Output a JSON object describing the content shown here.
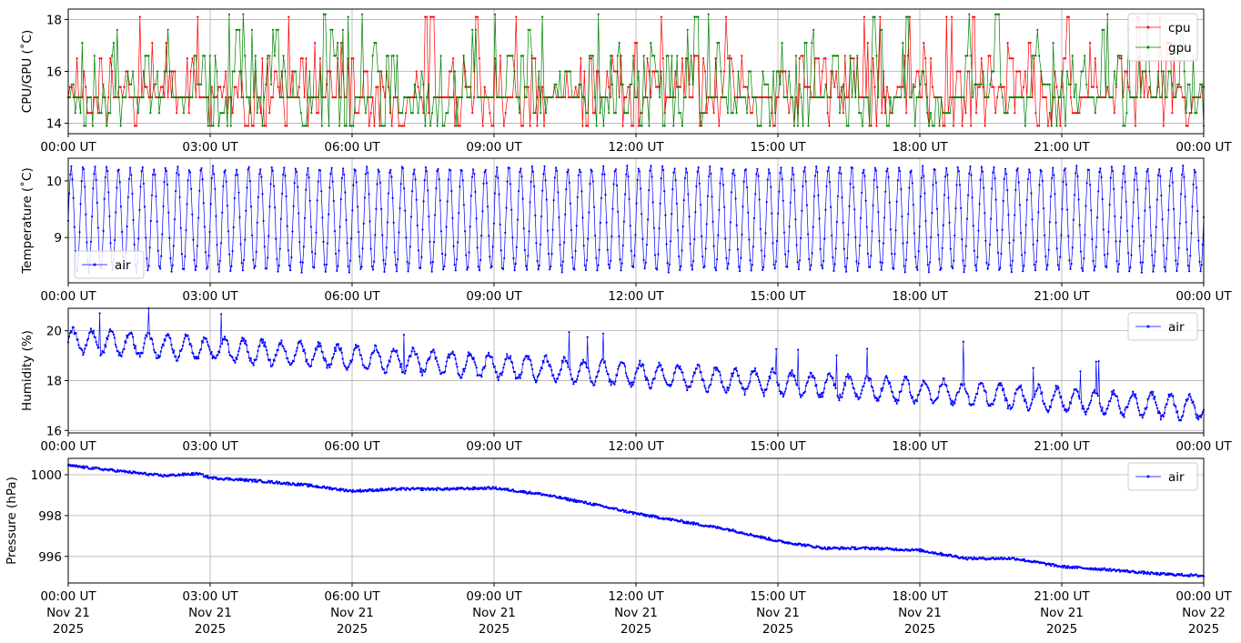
{
  "x_ticks": [
    "00:00 UT",
    "03:00 UT",
    "06:00 UT",
    "09:00 UT",
    "12:00 UT",
    "15:00 UT",
    "18:00 UT",
    "21:00 UT",
    "00:00 UT"
  ],
  "date_lines": {
    "day": [
      "Nov 21",
      "Nov 21",
      "Nov 21",
      "Nov 21",
      "Nov 21",
      "Nov 21",
      "Nov 21",
      "Nov 21",
      "Nov 22"
    ],
    "year": [
      "2025",
      "2025",
      "2025",
      "2025",
      "2025",
      "2025",
      "2025",
      "2025",
      "2025"
    ]
  },
  "chart_data": [
    {
      "type": "line",
      "ylabel": "CPU/GPU (˚C)",
      "x_range": [
        "2025-11-21 00:00 UT",
        "2025-11-22 00:00 UT"
      ],
      "ylim": [
        13.6,
        18.4
      ],
      "yticks": [
        14,
        16,
        18
      ],
      "grid": true,
      "legend_position": "top-right",
      "series": [
        {
          "name": "cpu",
          "color": "#ff0000",
          "levels": [
            13.9,
            14.4,
            15.0,
            15.4,
            16.0,
            16.5
          ],
          "spikes": [
            18.1,
            17.1,
            16.6
          ],
          "typical": 15.0
        },
        {
          "name": "gpu",
          "color": "#008000",
          "levels": [
            13.9,
            14.4,
            15.0,
            15.5,
            16.0,
            16.6
          ],
          "spikes": [
            18.2,
            18.1,
            17.6,
            17.1
          ],
          "typical": 15.0
        }
      ]
    },
    {
      "type": "line",
      "ylabel": "Temperature (˚C)",
      "x_range": [
        "2025-11-21 00:00 UT",
        "2025-11-22 00:00 UT"
      ],
      "ylim": [
        8.2,
        10.4
      ],
      "yticks": [
        9,
        10
      ],
      "grid": true,
      "legend_position": "bottom-left",
      "series": [
        {
          "name": "air",
          "color": "#0000ff",
          "cycles": 96,
          "min": 8.35,
          "max": 10.3,
          "mean": 9.3
        }
      ]
    },
    {
      "type": "line",
      "ylabel": "Humidity (%)",
      "x_range": [
        "2025-11-21 00:00 UT",
        "2025-11-22 00:00 UT"
      ],
      "ylim": [
        15.9,
        20.9
      ],
      "yticks": [
        16,
        18,
        20
      ],
      "grid": true,
      "legend_position": "top-right",
      "series": [
        {
          "name": "air",
          "color": "#0000ff",
          "start": 19.6,
          "end": 16.9,
          "amplitude": 0.45,
          "max": 20.7,
          "min": 16.1
        }
      ]
    },
    {
      "type": "line",
      "ylabel": "Pressure (hPa)",
      "x_range": [
        "2025-11-21 00:00 UT",
        "2025-11-22 00:00 UT"
      ],
      "ylim": [
        994.7,
        1000.8
      ],
      "yticks": [
        996,
        998,
        1000
      ],
      "grid": true,
      "legend_position": "top-right",
      "series": [
        {
          "name": "air",
          "color": "#0000ff",
          "hours": [
            0,
            1,
            2,
            2.75,
            3,
            4,
            5,
            6,
            7,
            8,
            9,
            10,
            11,
            12,
            13,
            14,
            15,
            16,
            17,
            18,
            19,
            20,
            21,
            22,
            23,
            24
          ],
          "values": [
            1000.45,
            1000.2,
            999.95,
            1000.05,
            999.85,
            999.7,
            999.5,
            999.2,
            999.3,
            999.3,
            999.35,
            999.05,
            998.6,
            998.1,
            997.7,
            997.3,
            996.75,
            996.4,
            996.4,
            996.3,
            995.9,
            995.9,
            995.5,
            995.35,
            995.15,
            995.05
          ]
        }
      ]
    }
  ]
}
